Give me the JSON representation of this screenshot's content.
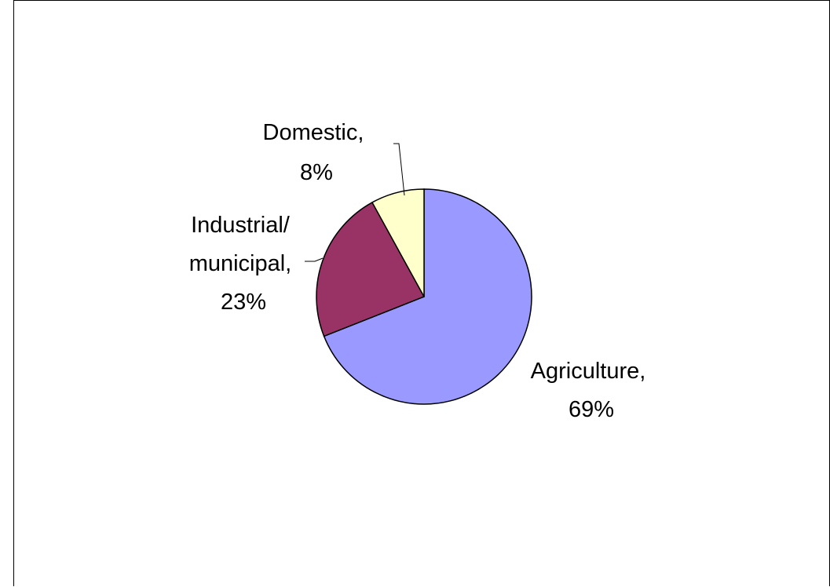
{
  "chart_data": {
    "type": "pie",
    "slices": [
      {
        "label_line1": "Agriculture,",
        "label_line2": "69%",
        "value": 69,
        "color": "#9999ff"
      },
      {
        "label_line1": "Industrial/ municipal,",
        "label_line2": "23%",
        "value": 23,
        "color": "#993366"
      },
      {
        "label_line1": "Domestic,",
        "label_line2": "8%",
        "value": 8,
        "color": "#ffffcc"
      }
    ],
    "label_lines": {
      "agriculture": [
        "Agriculture,",
        "69%"
      ],
      "industrial": [
        "Industrial/",
        "municipal,",
        "23%"
      ],
      "domestic": [
        "Domestic,",
        "8%"
      ]
    },
    "start_angle_deg": 0,
    "direction": "clockwise",
    "legend": "none"
  }
}
